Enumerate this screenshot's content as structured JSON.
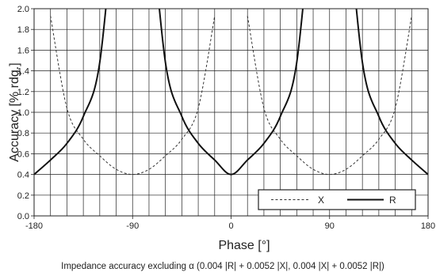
{
  "chart_data": {
    "type": "line",
    "xlabel": "Phase [°]",
    "ylabel": "Accuracy [% rdg.]",
    "xlim": [
      -180,
      180
    ],
    "ylim": [
      0,
      2.0
    ],
    "x_ticks": [
      -180,
      -90,
      0,
      90,
      180
    ],
    "x_tick_labels": [
      "-180",
      "-90",
      "0",
      "90",
      "180"
    ],
    "y_ticks": [
      0.0,
      0.2,
      0.4,
      0.6,
      0.8,
      1.0,
      1.2,
      1.4,
      1.6,
      1.8,
      2.0
    ],
    "y_tick_labels": [
      "0.0",
      "0.2",
      "0.4",
      "0.6",
      "0.8",
      "1.0",
      "1.2",
      "1.4",
      "1.6",
      "1.8",
      "2.0"
    ],
    "grid": true,
    "legend_position": "bottom-right",
    "series": [
      {
        "name": "X",
        "line_style": "dashed",
        "color": "#333333",
        "x": [
          -180,
          -165,
          -150,
          -135,
          -120,
          -105,
          -90,
          -75,
          -60,
          -45,
          -30,
          -15,
          0,
          15,
          30,
          45,
          60,
          75,
          90,
          105,
          120,
          135,
          150,
          165,
          180
        ],
        "y": [
          null,
          1.93,
          1.04,
          0.74,
          0.58,
          0.45,
          0.4,
          0.45,
          0.58,
          0.74,
          1.04,
          1.93,
          null,
          1.93,
          1.04,
          0.74,
          0.58,
          0.45,
          0.4,
          0.45,
          0.58,
          0.74,
          1.04,
          1.93,
          null
        ]
      },
      {
        "name": "R",
        "line_style": "solid",
        "color": "#111111",
        "x": [
          -180,
          -165,
          -150,
          -135,
          -120,
          -105,
          -90,
          -75,
          -60,
          -45,
          -30,
          -15,
          0,
          15,
          30,
          45,
          60,
          75,
          90,
          105,
          120,
          135,
          150,
          165,
          180
        ],
        "y": [
          0.4,
          0.54,
          0.7,
          0.96,
          1.48,
          3.09,
          null,
          3.09,
          1.48,
          0.96,
          0.7,
          0.54,
          0.4,
          0.54,
          0.7,
          0.96,
          1.48,
          3.09,
          null,
          3.09,
          1.48,
          0.96,
          0.7,
          0.54,
          0.4
        ]
      }
    ],
    "caption": "Impedance accuracy excluding α (0.004 |R| + 0.0052 |X|, 0.004 |X| + 0.0052 |R|)"
  }
}
